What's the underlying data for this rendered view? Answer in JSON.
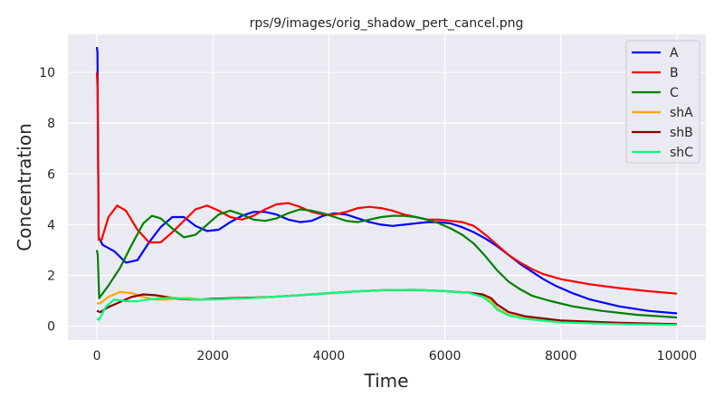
{
  "chart_data": {
    "type": "line",
    "title": "rps/9/images/orig_shadow_pert_cancel.png",
    "xlabel": "Time",
    "ylabel": "Concentration",
    "xlim": [
      -500,
      10500
    ],
    "ylim": [
      -0.55,
      11.5
    ],
    "xticks": [
      0,
      2000,
      4000,
      6000,
      8000,
      10000
    ],
    "yticks": [
      0,
      2,
      4,
      6,
      8,
      10
    ],
    "grid": true,
    "legend_position": "top-right",
    "colors": {
      "background": "#eaeaf2",
      "grid": "#ffffff"
    },
    "series": [
      {
        "name": "A",
        "color": "#0000ff",
        "points": [
          [
            0,
            11
          ],
          [
            10,
            10.8
          ],
          [
            30,
            3.5
          ],
          [
            100,
            3.2
          ],
          [
            300,
            2.95
          ],
          [
            500,
            2.5
          ],
          [
            700,
            2.6
          ],
          [
            900,
            3.3
          ],
          [
            1100,
            3.9
          ],
          [
            1300,
            4.3
          ],
          [
            1500,
            4.3
          ],
          [
            1700,
            3.95
          ],
          [
            1900,
            3.75
          ],
          [
            2100,
            3.8
          ],
          [
            2300,
            4.1
          ],
          [
            2500,
            4.35
          ],
          [
            2700,
            4.5
          ],
          [
            2900,
            4.5
          ],
          [
            3100,
            4.4
          ],
          [
            3300,
            4.2
          ],
          [
            3500,
            4.1
          ],
          [
            3700,
            4.15
          ],
          [
            3900,
            4.35
          ],
          [
            4100,
            4.45
          ],
          [
            4300,
            4.4
          ],
          [
            4500,
            4.25
          ],
          [
            4700,
            4.1
          ],
          [
            4900,
            4.0
          ],
          [
            5100,
            3.95
          ],
          [
            5300,
            4.0
          ],
          [
            5500,
            4.05
          ],
          [
            5700,
            4.1
          ],
          [
            5900,
            4.1
          ],
          [
            6100,
            4.05
          ],
          [
            6300,
            3.9
          ],
          [
            6500,
            3.7
          ],
          [
            6700,
            3.45
          ],
          [
            6900,
            3.15
          ],
          [
            7100,
            2.8
          ],
          [
            7300,
            2.45
          ],
          [
            7500,
            2.15
          ],
          [
            7700,
            1.85
          ],
          [
            7900,
            1.6
          ],
          [
            8200,
            1.3
          ],
          [
            8500,
            1.05
          ],
          [
            9000,
            0.78
          ],
          [
            9500,
            0.6
          ],
          [
            10000,
            0.5
          ]
        ]
      },
      {
        "name": "B",
        "color": "#ff0000",
        "points": [
          [
            0,
            10
          ],
          [
            10,
            9.5
          ],
          [
            30,
            3.4
          ],
          [
            80,
            3.4
          ],
          [
            200,
            4.3
          ],
          [
            350,
            4.75
          ],
          [
            500,
            4.55
          ],
          [
            700,
            3.8
          ],
          [
            900,
            3.3
          ],
          [
            1100,
            3.3
          ],
          [
            1300,
            3.7
          ],
          [
            1500,
            4.15
          ],
          [
            1700,
            4.6
          ],
          [
            1900,
            4.75
          ],
          [
            2100,
            4.55
          ],
          [
            2300,
            4.3
          ],
          [
            2500,
            4.2
          ],
          [
            2700,
            4.35
          ],
          [
            2900,
            4.6
          ],
          [
            3100,
            4.8
          ],
          [
            3300,
            4.85
          ],
          [
            3500,
            4.7
          ],
          [
            3700,
            4.5
          ],
          [
            3900,
            4.4
          ],
          [
            4100,
            4.4
          ],
          [
            4300,
            4.5
          ],
          [
            4500,
            4.65
          ],
          [
            4700,
            4.7
          ],
          [
            4900,
            4.65
          ],
          [
            5100,
            4.55
          ],
          [
            5300,
            4.4
          ],
          [
            5500,
            4.3
          ],
          [
            5700,
            4.2
          ],
          [
            5900,
            4.2
          ],
          [
            6100,
            4.15
          ],
          [
            6300,
            4.1
          ],
          [
            6500,
            3.95
          ],
          [
            6700,
            3.6
          ],
          [
            6900,
            3.2
          ],
          [
            7100,
            2.8
          ],
          [
            7300,
            2.5
          ],
          [
            7500,
            2.25
          ],
          [
            7700,
            2.05
          ],
          [
            8000,
            1.85
          ],
          [
            8500,
            1.65
          ],
          [
            9000,
            1.5
          ],
          [
            9500,
            1.38
          ],
          [
            10000,
            1.28
          ]
        ]
      },
      {
        "name": "C",
        "color": "#008000",
        "points": [
          [
            0,
            3
          ],
          [
            15,
            2.8
          ],
          [
            40,
            1.1
          ],
          [
            200,
            1.6
          ],
          [
            400,
            2.3
          ],
          [
            600,
            3.2
          ],
          [
            800,
            4.05
          ],
          [
            950,
            4.35
          ],
          [
            1100,
            4.25
          ],
          [
            1300,
            3.85
          ],
          [
            1500,
            3.5
          ],
          [
            1700,
            3.6
          ],
          [
            1900,
            4.0
          ],
          [
            2100,
            4.4
          ],
          [
            2300,
            4.55
          ],
          [
            2500,
            4.4
          ],
          [
            2700,
            4.2
          ],
          [
            2900,
            4.15
          ],
          [
            3100,
            4.25
          ],
          [
            3300,
            4.45
          ],
          [
            3500,
            4.6
          ],
          [
            3700,
            4.55
          ],
          [
            3900,
            4.45
          ],
          [
            4100,
            4.3
          ],
          [
            4300,
            4.15
          ],
          [
            4500,
            4.1
          ],
          [
            4700,
            4.2
          ],
          [
            4900,
            4.3
          ],
          [
            5100,
            4.35
          ],
          [
            5300,
            4.35
          ],
          [
            5500,
            4.3
          ],
          [
            5700,
            4.2
          ],
          [
            5900,
            4.05
          ],
          [
            6100,
            3.85
          ],
          [
            6300,
            3.6
          ],
          [
            6500,
            3.25
          ],
          [
            6700,
            2.75
          ],
          [
            6900,
            2.2
          ],
          [
            7100,
            1.75
          ],
          [
            7300,
            1.45
          ],
          [
            7500,
            1.2
          ],
          [
            7800,
            1.0
          ],
          [
            8200,
            0.78
          ],
          [
            8700,
            0.6
          ],
          [
            9300,
            0.45
          ],
          [
            10000,
            0.34
          ]
        ]
      },
      {
        "name": "shA",
        "color": "#ffa500",
        "points": [
          [
            0,
            0.9
          ],
          [
            60,
            0.9
          ],
          [
            200,
            1.15
          ],
          [
            400,
            1.35
          ],
          [
            600,
            1.3
          ],
          [
            800,
            1.15
          ],
          [
            1000,
            1.05
          ],
          [
            1200,
            1.05
          ],
          [
            1400,
            1.1
          ],
          [
            1600,
            1.1
          ],
          [
            1800,
            1.05
          ],
          [
            2000,
            1.05
          ],
          [
            2300,
            1.08
          ],
          [
            2600,
            1.1
          ],
          [
            3000,
            1.15
          ],
          [
            3500,
            1.22
          ],
          [
            4000,
            1.3
          ],
          [
            4500,
            1.37
          ],
          [
            5000,
            1.42
          ],
          [
            5500,
            1.43
          ],
          [
            6000,
            1.38
          ],
          [
            6400,
            1.32
          ],
          [
            6650,
            1.2
          ],
          [
            6800,
            1.0
          ],
          [
            6900,
            0.7
          ],
          [
            7100,
            0.45
          ],
          [
            7400,
            0.3
          ],
          [
            8000,
            0.18
          ],
          [
            9000,
            0.1
          ],
          [
            10000,
            0.06
          ]
        ]
      },
      {
        "name": "shB",
        "color": "#8b0000",
        "points": [
          [
            0,
            0.6
          ],
          [
            60,
            0.55
          ],
          [
            200,
            0.75
          ],
          [
            400,
            0.95
          ],
          [
            600,
            1.15
          ],
          [
            800,
            1.25
          ],
          [
            1000,
            1.22
          ],
          [
            1200,
            1.15
          ],
          [
            1400,
            1.08
          ],
          [
            1600,
            1.05
          ],
          [
            1800,
            1.05
          ],
          [
            2000,
            1.08
          ],
          [
            2300,
            1.1
          ],
          [
            2600,
            1.12
          ],
          [
            3000,
            1.15
          ],
          [
            3500,
            1.22
          ],
          [
            4000,
            1.3
          ],
          [
            4500,
            1.37
          ],
          [
            5000,
            1.42
          ],
          [
            5500,
            1.43
          ],
          [
            6000,
            1.38
          ],
          [
            6400,
            1.32
          ],
          [
            6650,
            1.25
          ],
          [
            6800,
            1.1
          ],
          [
            6900,
            0.85
          ],
          [
            7100,
            0.55
          ],
          [
            7400,
            0.38
          ],
          [
            8000,
            0.22
          ],
          [
            9000,
            0.13
          ],
          [
            10000,
            0.08
          ]
        ]
      },
      {
        "name": "shC",
        "color": "#00ff7f",
        "points": [
          [
            0,
            0.3
          ],
          [
            40,
            0.25
          ],
          [
            150,
            0.75
          ],
          [
            300,
            1.05
          ],
          [
            500,
            0.98
          ],
          [
            700,
            0.98
          ],
          [
            900,
            1.05
          ],
          [
            1100,
            1.1
          ],
          [
            1300,
            1.12
          ],
          [
            1500,
            1.08
          ],
          [
            1700,
            1.05
          ],
          [
            2000,
            1.05
          ],
          [
            2300,
            1.08
          ],
          [
            2600,
            1.1
          ],
          [
            3000,
            1.15
          ],
          [
            3500,
            1.22
          ],
          [
            4000,
            1.3
          ],
          [
            4500,
            1.37
          ],
          [
            5000,
            1.42
          ],
          [
            5500,
            1.43
          ],
          [
            6000,
            1.38
          ],
          [
            6400,
            1.32
          ],
          [
            6650,
            1.15
          ],
          [
            6800,
            0.9
          ],
          [
            6900,
            0.65
          ],
          [
            7100,
            0.42
          ],
          [
            7400,
            0.28
          ],
          [
            8000,
            0.15
          ],
          [
            9000,
            0.08
          ],
          [
            10000,
            0.05
          ]
        ]
      }
    ]
  }
}
